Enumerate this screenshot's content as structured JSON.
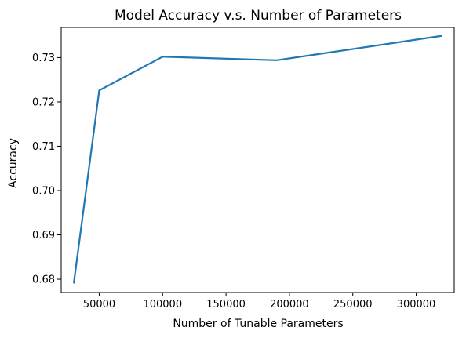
{
  "chart_data": {
    "type": "line",
    "title": "Model Accuracy v.s. Number of Parameters",
    "xlabel": "Number of Tunable Parameters",
    "ylabel": "Accuracy",
    "xlim": [
      20000,
      330000
    ],
    "ylim": [
      0.677,
      0.7368
    ],
    "grid": false,
    "legend": "none",
    "xticks": [
      50000,
      100000,
      150000,
      200000,
      250000,
      300000
    ],
    "xtick_labels": [
      "50000",
      "100000",
      "150000",
      "200000",
      "250000",
      "300000"
    ],
    "yticks": [
      0.68,
      0.69,
      0.7,
      0.71,
      0.72,
      0.73
    ],
    "ytick_labels": [
      "0.68",
      "0.69",
      "0.70",
      "0.71",
      "0.72",
      "0.73"
    ],
    "series": [
      {
        "color": "#1f77b4",
        "x": [
          30000,
          50000,
          100000,
          190000,
          320000
        ],
        "y": [
          0.6792,
          0.7226,
          0.7302,
          0.7294,
          0.7349
        ]
      }
    ]
  }
}
